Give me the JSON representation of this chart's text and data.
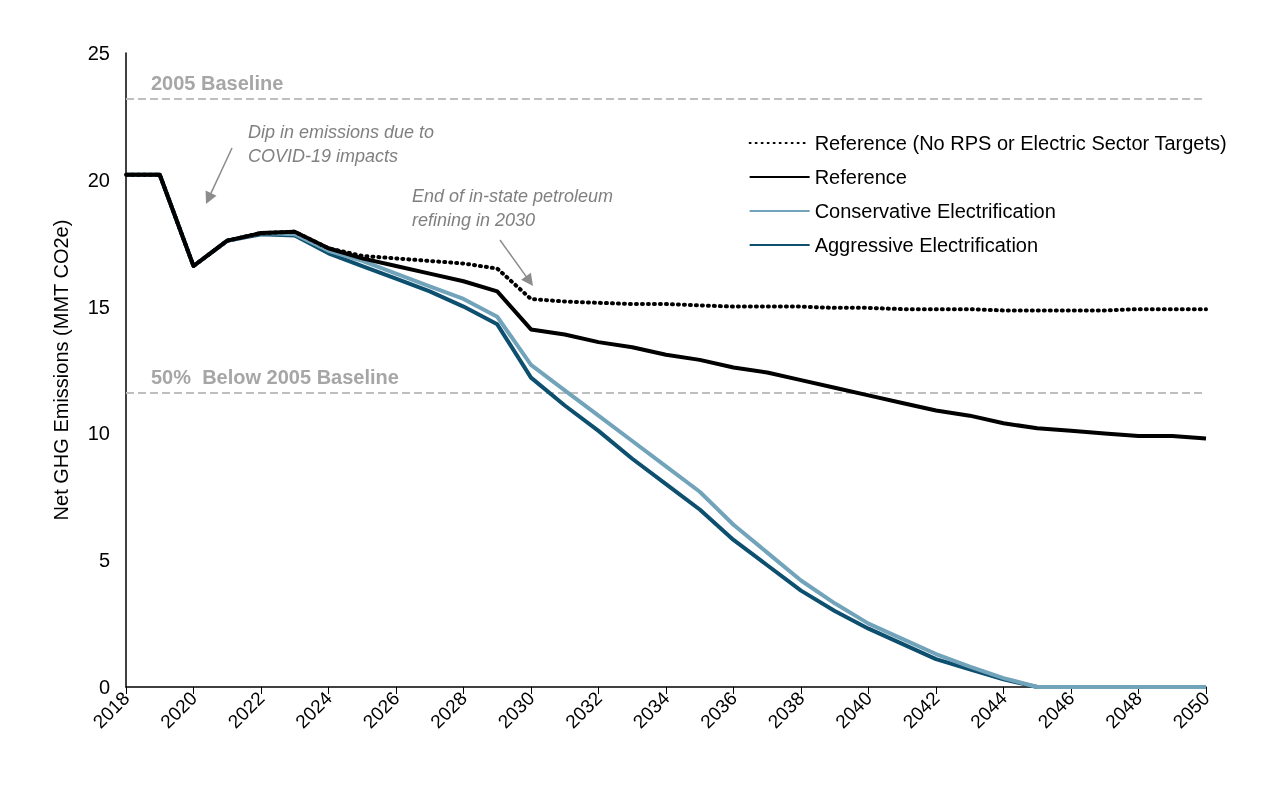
{
  "chart_data": {
    "type": "line",
    "ylabel": "Net GHG Emissions (MMT CO2e)",
    "x": [
      2018,
      2019,
      2020,
      2021,
      2022,
      2023,
      2024,
      2025,
      2026,
      2027,
      2028,
      2029,
      2030,
      2031,
      2032,
      2033,
      2034,
      2035,
      2036,
      2037,
      2038,
      2039,
      2040,
      2041,
      2042,
      2043,
      2044,
      2045,
      2046,
      2047,
      2048,
      2049,
      2050
    ],
    "xlim": [
      2018,
      2050
    ],
    "xticks": [
      2018,
      2020,
      2022,
      2024,
      2026,
      2028,
      2030,
      2032,
      2034,
      2036,
      2038,
      2040,
      2042,
      2044,
      2046,
      2048,
      2050
    ],
    "ylim": [
      0,
      25
    ],
    "yticks": [
      0,
      5,
      10,
      15,
      20,
      25
    ],
    "series": [
      {
        "name": "Reference (No RPS or Electric Sector Targets)",
        "color": "#000000",
        "line_style": "dotted",
        "values": [
          20.2,
          20.2,
          16.6,
          17.6,
          17.9,
          17.95,
          17.3,
          17.0,
          16.9,
          16.8,
          16.7,
          16.5,
          15.3,
          15.2,
          15.15,
          15.1,
          15.1,
          15.05,
          15.0,
          15.0,
          15.0,
          14.95,
          14.95,
          14.9,
          14.9,
          14.9,
          14.85,
          14.85,
          14.85,
          14.85,
          14.9,
          14.9,
          14.9
        ]
      },
      {
        "name": "Reference",
        "color": "#000000",
        "line_style": "solid",
        "values": [
          20.2,
          20.2,
          16.6,
          17.6,
          17.9,
          17.95,
          17.3,
          16.9,
          16.6,
          16.3,
          16.0,
          15.6,
          14.1,
          13.9,
          13.6,
          13.4,
          13.1,
          12.9,
          12.6,
          12.4,
          12.1,
          11.8,
          11.5,
          11.2,
          10.9,
          10.7,
          10.4,
          10.2,
          10.1,
          10.0,
          9.9,
          9.9,
          9.8
        ]
      },
      {
        "name": "Conservative Electrification",
        "color": "#71a3ba",
        "line_style": "solid",
        "values": [
          20.2,
          20.2,
          16.6,
          17.6,
          17.9,
          17.85,
          17.2,
          16.8,
          16.3,
          15.8,
          15.3,
          14.6,
          12.7,
          11.7,
          10.7,
          9.7,
          8.7,
          7.7,
          6.4,
          5.3,
          4.2,
          3.3,
          2.5,
          1.9,
          1.3,
          0.8,
          0.35,
          0,
          0,
          0,
          0,
          0,
          0
        ]
      },
      {
        "name": "Aggressive Electrification",
        "color": "#0d4f6e",
        "line_style": "solid",
        "values": [
          20.2,
          20.2,
          16.6,
          17.6,
          17.85,
          17.8,
          17.1,
          16.6,
          16.1,
          15.6,
          15.0,
          14.3,
          12.2,
          11.1,
          10.1,
          9.0,
          8.0,
          7.0,
          5.8,
          4.8,
          3.8,
          3.0,
          2.3,
          1.7,
          1.1,
          0.7,
          0.3,
          0,
          0,
          0,
          0,
          0,
          0
        ]
      }
    ],
    "ref_lines": [
      {
        "axis": "y",
        "value": 23.2,
        "label": "2005 Baseline",
        "color": "#bfbfbf",
        "line_style": "dashed"
      },
      {
        "axis": "y",
        "value": 11.6,
        "label": "50%  Below 2005 Baseline",
        "color": "#bfbfbf",
        "line_style": "dashed"
      }
    ],
    "annotations": [
      "Dip in emissions due to\nCOVID-19 impacts",
      "End of in-state petroleum\nrefining in 2030"
    ],
    "legend": "top right",
    "grid": false,
    "marker": "none"
  }
}
